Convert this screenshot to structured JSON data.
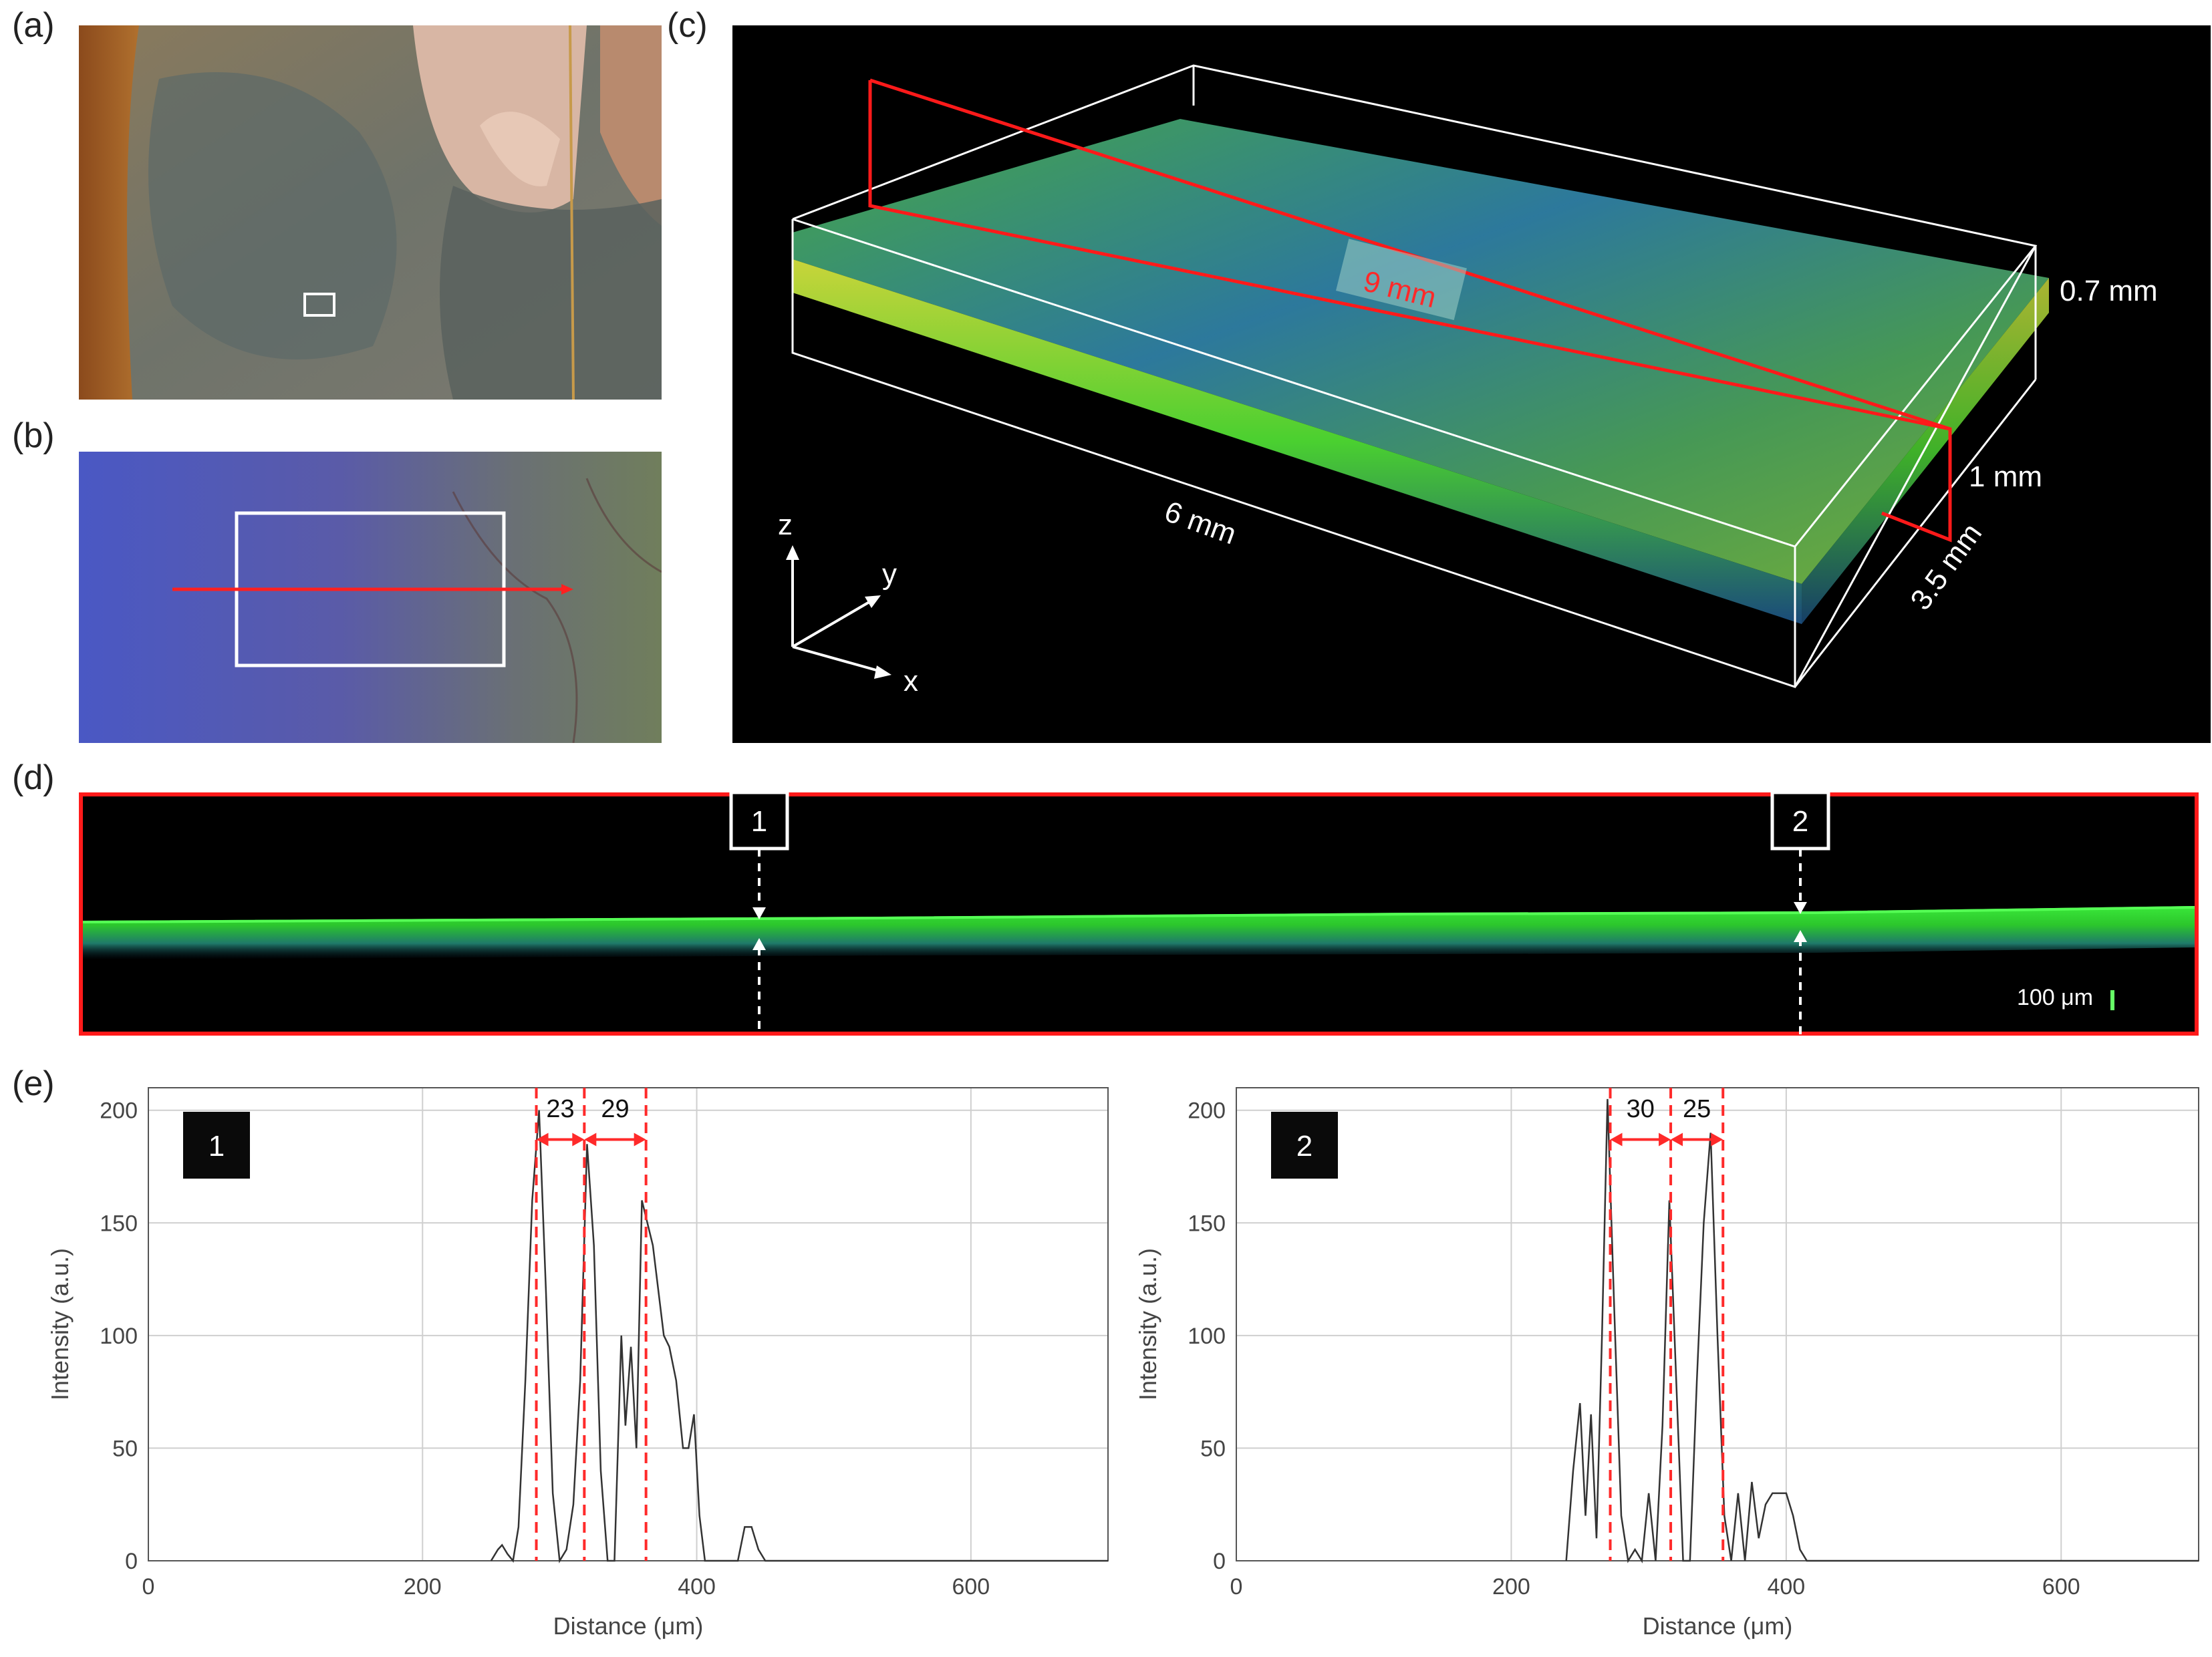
{
  "panels": {
    "a": {
      "label": "(a)"
    },
    "b": {
      "label": "(b)"
    },
    "c": {
      "label": "(c)",
      "dimensions": {
        "length": "9 mm",
        "width": "6 mm",
        "depth": "3.5 mm",
        "height": "0.7 mm",
        "slice_height": "1 mm"
      },
      "axes": {
        "z": "z",
        "y": "y",
        "x": "x"
      }
    },
    "d": {
      "label": "(d)",
      "markers": [
        "1",
        "2"
      ],
      "scale_bar": "100 μm"
    },
    "e": {
      "label": "(e)"
    }
  },
  "colors": {
    "accent": "#ff2a2a",
    "signal": "#33dd22",
    "plot_line": "#333333"
  },
  "chart_data": [
    {
      "type": "line",
      "badge": "1",
      "title": "",
      "xlabel": "Distance (μm)",
      "ylabel": "Intensity (a.u.)",
      "xlim": [
        0,
        700
      ],
      "ylim": [
        0,
        210
      ],
      "xticks": [
        0,
        200,
        400,
        600
      ],
      "yticks": [
        0,
        50,
        100,
        150,
        200
      ],
      "grid": true,
      "series": [
        {
          "x": [
            250,
            255,
            258,
            262,
            266,
            270,
            275,
            280,
            285,
            290,
            295,
            300,
            305,
            310,
            315,
            320,
            325,
            330,
            335,
            340,
            345,
            348,
            352,
            356,
            360,
            364,
            368,
            372,
            376,
            380,
            385,
            390,
            394,
            398,
            402,
            406,
            410,
            430,
            435,
            440,
            445,
            450,
            700
          ],
          "y": [
            0,
            5,
            7,
            3,
            0,
            15,
            80,
            160,
            200,
            120,
            30,
            0,
            5,
            25,
            80,
            185,
            140,
            40,
            0,
            0,
            100,
            60,
            95,
            50,
            160,
            150,
            140,
            120,
            100,
            95,
            80,
            50,
            50,
            65,
            20,
            0,
            0,
            0,
            15,
            15,
            5,
            0,
            0
          ]
        }
      ],
      "markers_x": [
        283,
        318,
        363
      ],
      "intervals": [
        {
          "label": "23",
          "from": 283,
          "to": 318
        },
        {
          "label": "29",
          "from": 318,
          "to": 363
        }
      ]
    },
    {
      "type": "line",
      "badge": "2",
      "title": "",
      "xlabel": "Distance (μm)",
      "ylabel": "Intensity (a.u.)",
      "xlim": [
        0,
        700
      ],
      "ylim": [
        0,
        210
      ],
      "xticks": [
        0,
        200,
        400,
        600
      ],
      "yticks": [
        0,
        50,
        100,
        150,
        200
      ],
      "grid": true,
      "series": [
        {
          "x": [
            240,
            245,
            250,
            254,
            258,
            262,
            266,
            270,
            275,
            280,
            285,
            290,
            295,
            300,
            305,
            310,
            315,
            320,
            325,
            330,
            335,
            340,
            345,
            350,
            355,
            360,
            365,
            370,
            375,
            380,
            385,
            390,
            395,
            400,
            405,
            410,
            415,
            700
          ],
          "y": [
            0,
            40,
            70,
            20,
            65,
            10,
            100,
            205,
            110,
            20,
            0,
            5,
            0,
            30,
            0,
            60,
            160,
            80,
            0,
            0,
            80,
            150,
            190,
            100,
            20,
            0,
            30,
            0,
            35,
            10,
            25,
            30,
            30,
            30,
            20,
            5,
            0,
            0
          ]
        }
      ],
      "markers_x": [
        272,
        316,
        354
      ],
      "intervals": [
        {
          "label": "30",
          "from": 272,
          "to": 316
        },
        {
          "label": "25",
          "from": 316,
          "to": 354
        }
      ]
    }
  ]
}
